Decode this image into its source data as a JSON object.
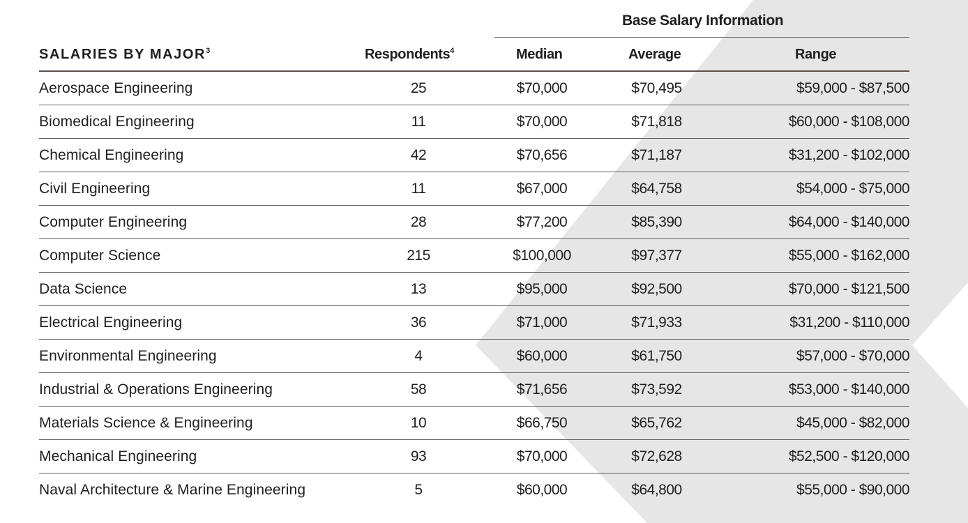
{
  "group_header": "Base Salary Information",
  "columns": {
    "major": "SALARIES BY MAJOR",
    "major_note": "3",
    "respondents": "Respondents",
    "respondents_note": "4",
    "median": "Median",
    "average": "Average",
    "range": "Range"
  },
  "rows": [
    {
      "major": "Aerospace Engineering",
      "respondents": "25",
      "median": "$70,000",
      "average": "$70,495",
      "range": "$59,000 - $87,500"
    },
    {
      "major": "Biomedical Engineering",
      "respondents": "11",
      "median": "$70,000",
      "average": "$71,818",
      "range": "$60,000 - $108,000"
    },
    {
      "major": "Chemical Engineering",
      "respondents": "42",
      "median": "$70,656",
      "average": "$71,187",
      "range": "$31,200 - $102,000"
    },
    {
      "major": "Civil Engineering",
      "respondents": "11",
      "median": "$67,000",
      "average": "$64,758",
      "range": "$54,000 - $75,000"
    },
    {
      "major": "Computer Engineering",
      "respondents": "28",
      "median": "$77,200",
      "average": "$85,390",
      "range": "$64,000 - $140,000"
    },
    {
      "major": "Computer Science",
      "respondents": "215",
      "median": "$100,000",
      "average": "$97,377",
      "range": "$55,000 - $162,000"
    },
    {
      "major": "Data Science",
      "respondents": "13",
      "median": "$95,000",
      "average": "$92,500",
      "range": "$70,000 - $121,500"
    },
    {
      "major": "Electrical Engineering",
      "respondents": "36",
      "median": "$71,000",
      "average": "$71,933",
      "range": "$31,200 - $110,000"
    },
    {
      "major": "Environmental Engineering",
      "respondents": "4",
      "median": "$60,000",
      "average": "$61,750",
      "range": "$57,000 - $70,000"
    },
    {
      "major": "Industrial & Operations Engineering",
      "respondents": "58",
      "median": "$71,656",
      "average": "$73,592",
      "range": "$53,000 - $140,000"
    },
    {
      "major": "Materials Science & Engineering",
      "respondents": "10",
      "median": "$66,750",
      "average": "$65,762",
      "range": "$45,000 - $82,000"
    },
    {
      "major": "Mechanical Engineering",
      "respondents": "93",
      "median": "$70,000",
      "average": "$72,628",
      "range": "$52,500 - $120,000"
    },
    {
      "major": "Naval Architecture & Marine Engineering",
      "respondents": "5",
      "median": "$60,000",
      "average": "$64,800",
      "range": "$55,000 - $90,000"
    }
  ],
  "colors": {
    "chevron": "#e6e6e6",
    "rule_heavy": "#5b4f4b",
    "rule": "#5f5f5f",
    "text": "#1f1f1f"
  }
}
